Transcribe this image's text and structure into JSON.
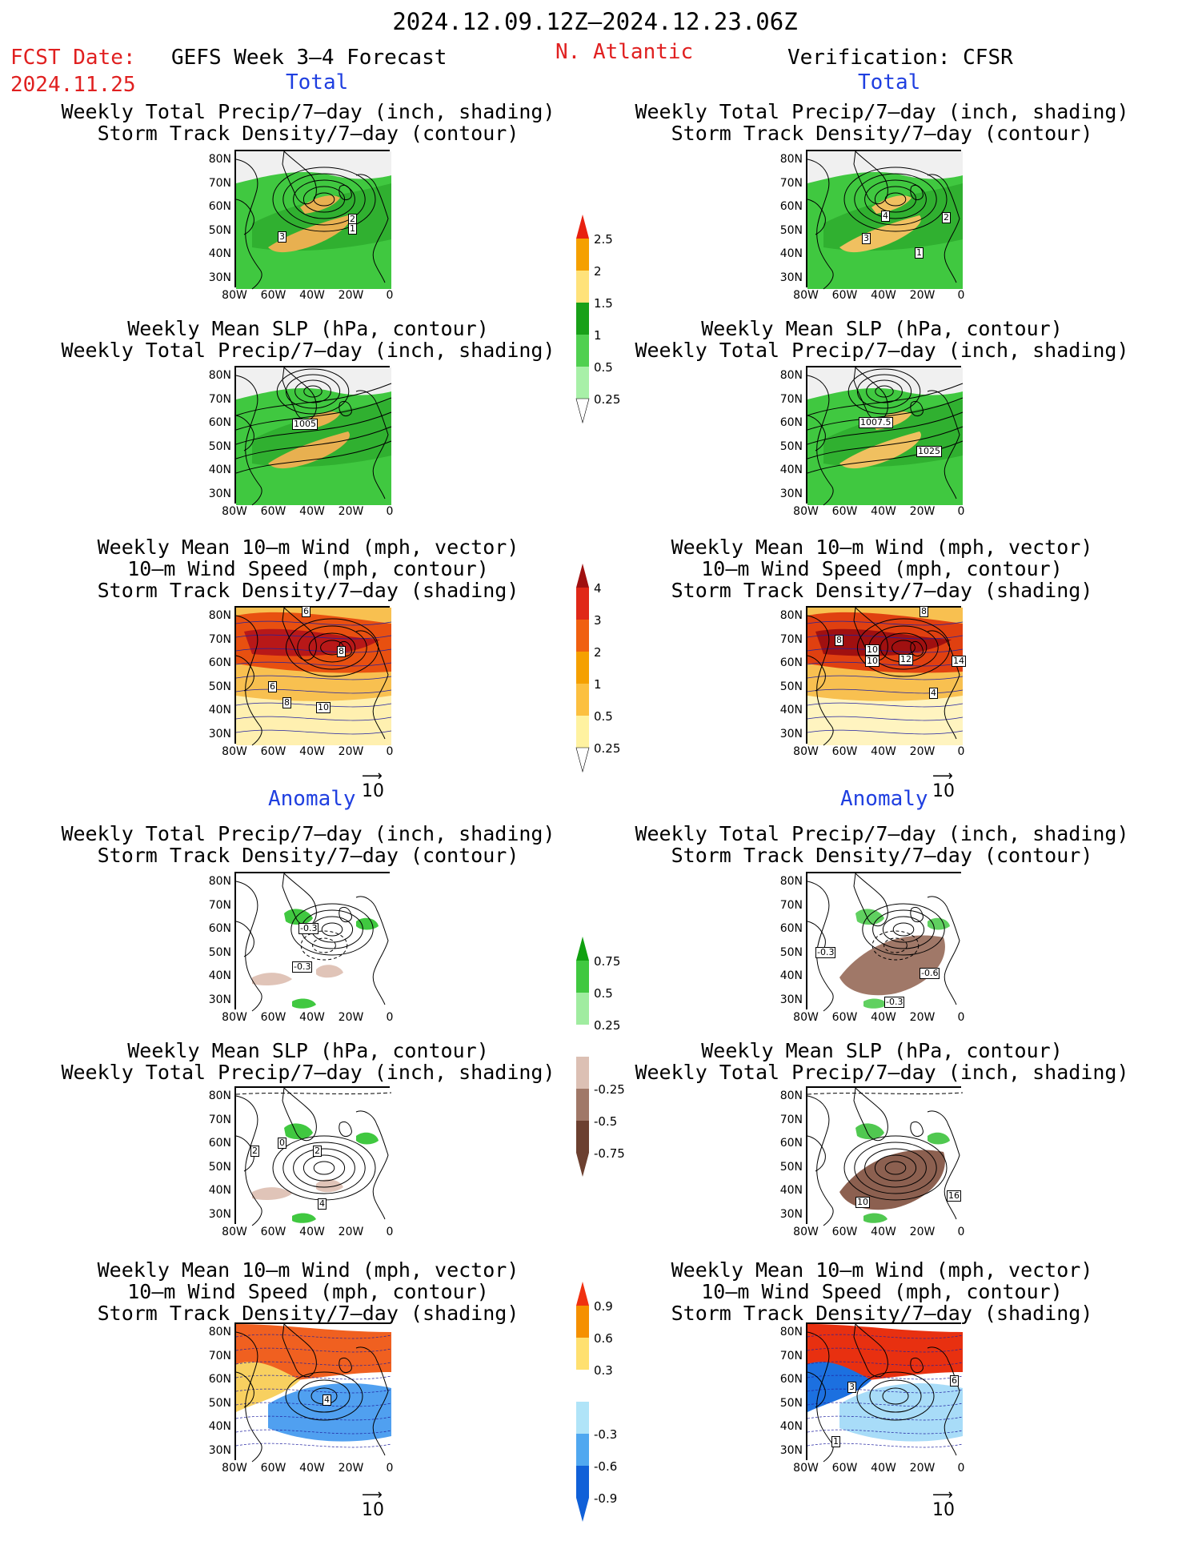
{
  "header": {
    "date_range": "2024.12.09.12Z–2024.12.23.06Z",
    "fcst_label": "FCST Date:",
    "fcst_date": "2024.11.25",
    "forecast_title": "GEFS Week 3–4 Forecast",
    "region": "N. Atlantic",
    "verification": "Verification: CFSR"
  },
  "sections": {
    "total": "Total",
    "anomaly": "Anomaly"
  },
  "panel_titles": {
    "precip_track": [
      "Weekly Total Precip/7–day (inch, shading)",
      "Storm Track Density/7–day (contour)"
    ],
    "slp_precip": [
      "Weekly Mean SLP (hPa, contour)",
      "Weekly Total Precip/7–day (inch, shading)"
    ],
    "wind_track": [
      "Weekly Mean 10–m Wind (mph, vector)",
      "10–m Wind Speed (mph, contour)",
      "Storm Track Density/7–day (shading)"
    ]
  },
  "axes": {
    "lat_ticks": [
      "80N",
      "70N",
      "60N",
      "50N",
      "40N",
      "30N"
    ],
    "lon_ticks": [
      "80W",
      "60W",
      "40W",
      "20W",
      "0"
    ]
  },
  "vector_ref": "10",
  "colorbars": {
    "total_precip": {
      "labels": [
        "2.5",
        "2",
        "1.5",
        "1",
        "0.5",
        "0.25"
      ],
      "colors": [
        "#e82010",
        "#f5a000",
        "#ffe27a",
        "#18a018",
        "#50d050",
        "#a8f0a8"
      ]
    },
    "total_track": {
      "labels": [
        "4",
        "3",
        "2",
        "1",
        "0.5",
        "0.25"
      ],
      "colors": [
        "#a01010",
        "#e02818",
        "#f06010",
        "#f5a000",
        "#fcc040",
        "#fff2a0"
      ]
    },
    "anom_precip": {
      "labels": [
        "0.75",
        "0.5",
        "0.25",
        "-0.25",
        "-0.5",
        "-0.75"
      ],
      "colors": [
        "#10a010",
        "#40c840",
        "#a0eca0",
        "#ffffff",
        "#dcc0b4",
        "#a07868",
        "#6c4030"
      ]
    },
    "anom_track": {
      "labels": [
        "0.9",
        "0.6",
        "0.3",
        "-0.3",
        "-0.6",
        "-0.9"
      ],
      "colors": [
        "#f03010",
        "#f59000",
        "#ffe070",
        "#ffffff",
        "#b0e4f8",
        "#50a8f0",
        "#1060d8"
      ]
    }
  },
  "panels": {
    "L1": {
      "labels": [
        "2",
        "1",
        "3"
      ],
      "colors": [
        "#f0f0f0",
        "#30b030",
        "#40c840",
        "#e8b050"
      ]
    },
    "R1": {
      "labels": [
        "4",
        "2",
        "3",
        "1"
      ],
      "colors": [
        "#f0f0f0",
        "#30b030",
        "#40c840",
        "#f0c060"
      ]
    },
    "L2": {
      "labels": [
        "1005"
      ],
      "colors": [
        "#f0f0f0",
        "#30b030",
        "#40c840",
        "#e8b050"
      ]
    },
    "R2": {
      "labels": [
        "1007.5",
        "1025"
      ],
      "colors": [
        "#f0f0f0",
        "#30b030",
        "#40c840",
        "#f0c060"
      ]
    },
    "L3": {
      "labels": [
        "6",
        "8",
        "6",
        "8",
        "10"
      ],
      "colors": [
        "#f8c050",
        "#e85010",
        "#b81818",
        "#fff0b0"
      ]
    },
    "R3": {
      "labels": [
        "8",
        "10",
        "10",
        "12",
        "14",
        "8",
        "4"
      ],
      "colors": [
        "#f8c050",
        "#e04010",
        "#a01010",
        "#fff4c0"
      ]
    },
    "L4": {
      "labels": [
        "-0.3",
        "-0.3"
      ],
      "colors": [
        "#ffffff",
        "#40c840",
        "#e0c4b8"
      ]
    },
    "R4": {
      "labels": [
        "-0.6",
        "-0.3",
        "-0.3"
      ],
      "colors": [
        "#ffffff",
        "#60d060",
        "#a07868"
      ]
    },
    "L5": {
      "labels": [
        "0",
        "2",
        "2",
        "4"
      ],
      "colors": [
        "#ffffff",
        "#40c840",
        "#e0c4b8"
      ]
    },
    "R5": {
      "labels": [
        "10",
        "16"
      ],
      "colors": [
        "#ffffff",
        "#50c850",
        "#8c6050"
      ]
    },
    "L6": {
      "labels": [
        "4"
      ],
      "colors": [
        "#f06020",
        "#f8d060",
        "#50a0f0",
        "#ffffff"
      ]
    },
    "R6": {
      "labels": [
        "3",
        "6",
        "1"
      ],
      "colors": [
        "#e83010",
        "#1c70e0",
        "#a8dcf8",
        "#ffffff"
      ]
    }
  }
}
